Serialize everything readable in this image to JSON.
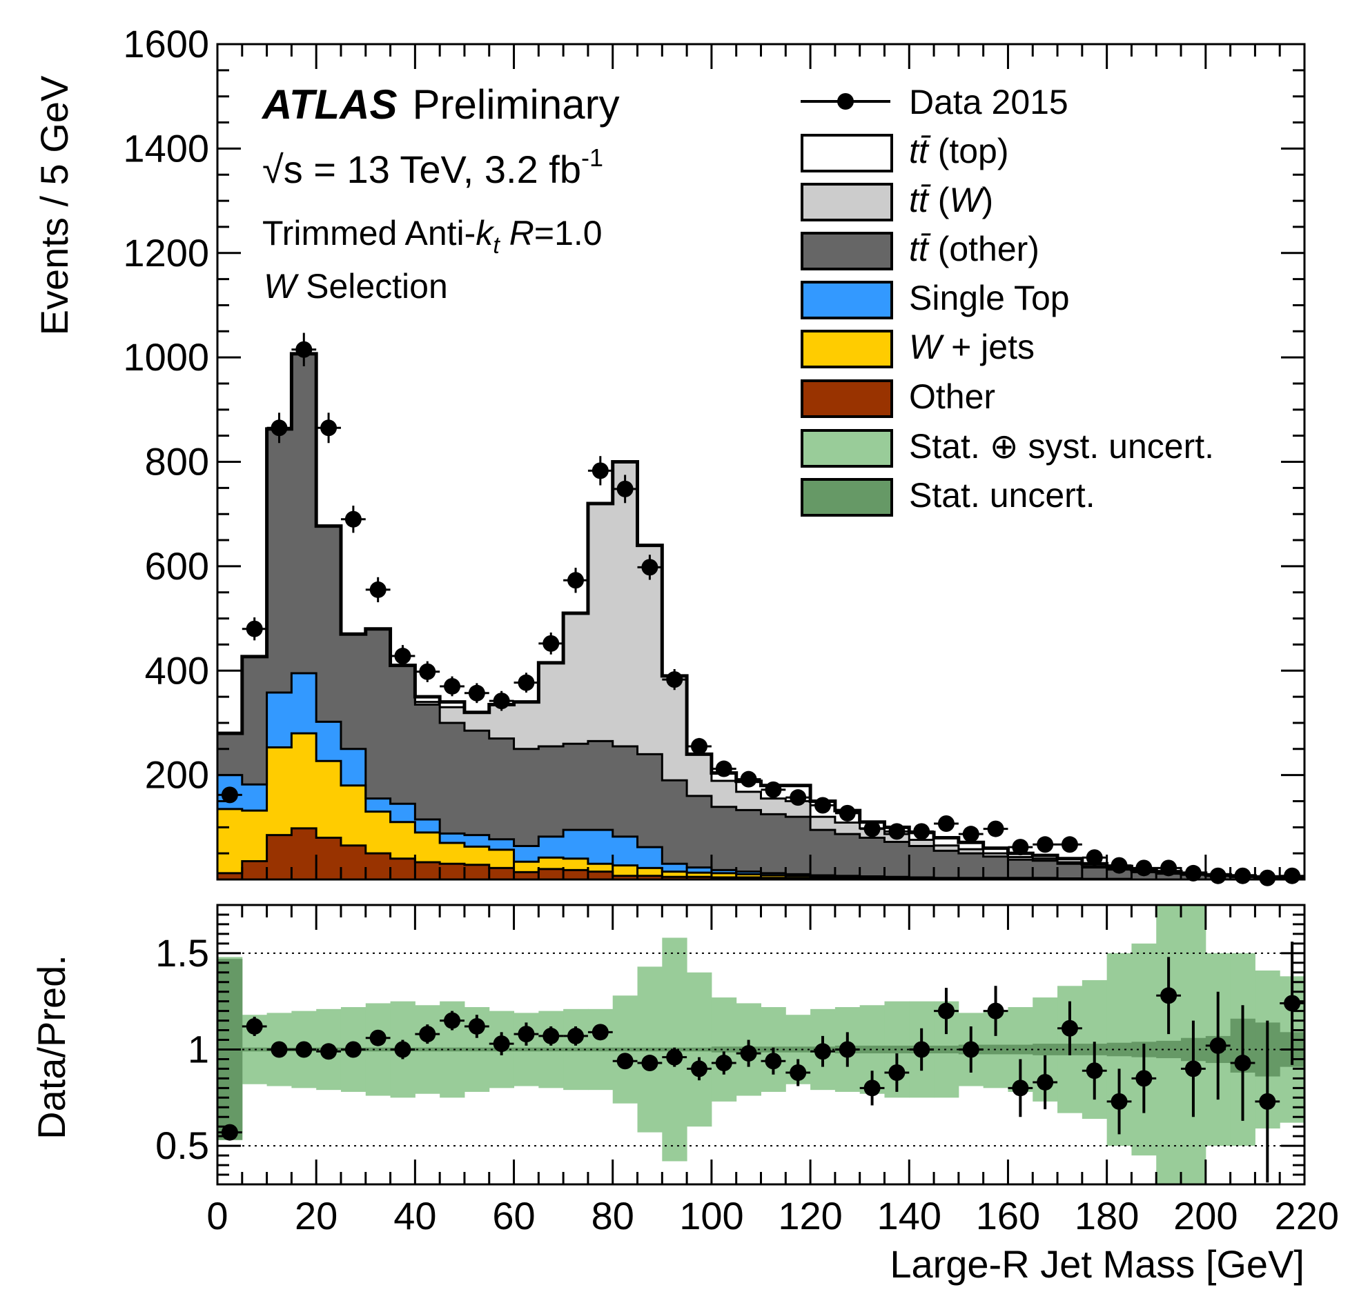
{
  "chart_data": [
    {
      "type": "area",
      "panel": "main",
      "ylabel": "Events / 5 GeV",
      "xlim": [
        0,
        220
      ],
      "ylim": [
        0,
        1600
      ],
      "yticks": [
        200,
        400,
        600,
        800,
        1000,
        1200,
        1400,
        1600
      ],
      "ytick_labels": [
        "200",
        "400",
        "600",
        "800",
        "1000",
        "1200",
        "1400",
        "1600"
      ],
      "annotations": {
        "atlas": "ATLAS",
        "preliminary": "Preliminary",
        "sqrt": "√",
        "energy": "s = 13 TeV, 3.2 fb",
        "energy_sup": "-1",
        "jet_a": "Trimmed Anti-",
        "jet_k": "k",
        "jet_t": "t",
        "jet_r": "R",
        "jet_b": "=1.0",
        "sel_w": "W",
        "sel_rest": " Selection"
      },
      "legend_position": "top-right",
      "legend": {
        "data": "Data 2015",
        "ttbar": "tt̄",
        "ttbar_top": " (top)",
        "ttbar_w_open": " (",
        "ttbar_w_w": "W",
        "ttbar_w_close": ")",
        "ttbar_other": " (other)",
        "single_top": "Single Top",
        "wjets_w": "W",
        "wjets_rest": " + jets",
        "other": "Other",
        "statsyst": "Stat. ⊕ syst. uncert.",
        "stat": "Stat. uncert."
      },
      "bin_width": 5,
      "bin_centers": [
        2.5,
        7.5,
        12.5,
        17.5,
        22.5,
        27.5,
        32.5,
        37.5,
        42.5,
        47.5,
        52.5,
        57.5,
        62.5,
        67.5,
        72.5,
        77.5,
        82.5,
        87.5,
        92.5,
        97.5,
        102.5,
        107.5,
        112.5,
        117.5,
        122.5,
        127.5,
        132.5,
        137.5,
        142.5,
        147.5,
        152.5,
        157.5,
        162.5,
        167.5,
        172.5,
        177.5,
        182.5,
        187.5,
        192.5,
        197.5,
        202.5,
        207.5,
        212.5,
        217.5
      ],
      "series": [
        {
          "name": "Other",
          "color": "#993300",
          "values": [
            12,
            35,
            85,
            98,
            80,
            65,
            50,
            40,
            33,
            30,
            28,
            22,
            14,
            20,
            18,
            15,
            7,
            7,
            5,
            5,
            4,
            4,
            3,
            3,
            2,
            2,
            2,
            1,
            1,
            1,
            1,
            1,
            1,
            1,
            1,
            0,
            0,
            0,
            0,
            0,
            0,
            0,
            0,
            0
          ]
        },
        {
          "name": "W + jets",
          "color": "#ffcc00",
          "values": [
            123,
            97,
            168,
            182,
            147,
            115,
            80,
            70,
            57,
            40,
            35,
            35,
            20,
            22,
            22,
            15,
            20,
            15,
            10,
            8,
            8,
            6,
            5,
            4,
            3,
            3,
            2,
            2,
            2,
            1,
            1,
            1,
            1,
            1,
            1,
            1,
            1,
            0,
            0,
            0,
            0,
            0,
            0,
            0
          ]
        },
        {
          "name": "Single Top",
          "color": "#3399ff",
          "values": [
            65,
            50,
            105,
            115,
            75,
            70,
            25,
            35,
            25,
            18,
            22,
            20,
            30,
            40,
            55,
            65,
            55,
            40,
            15,
            10,
            6,
            5,
            4,
            3,
            3,
            2,
            2,
            2,
            1,
            1,
            1,
            1,
            1,
            1,
            0,
            0,
            0,
            0,
            0,
            0,
            0,
            0,
            0,
            0
          ]
        },
        {
          "name": "tt̄ (other)",
          "color": "#666666",
          "values": [
            80,
            245,
            505,
            612,
            375,
            220,
            325,
            265,
            220,
            212,
            200,
            193,
            186,
            173,
            165,
            170,
            173,
            178,
            160,
            137,
            121,
            118,
            113,
            110,
            87,
            80,
            74,
            67,
            60,
            52,
            47,
            41,
            35,
            33,
            28,
            22,
            18,
            14,
            11,
            9,
            7,
            5,
            4,
            3
          ]
        },
        {
          "name": "tt̄ (W)",
          "color": "#cccccc",
          "values": [
            0,
            0,
            0,
            0,
            0,
            0,
            0,
            0,
            5,
            30,
            35,
            65,
            90,
            160,
            250,
            455,
            545,
            400,
            200,
            80,
            50,
            35,
            30,
            30,
            25,
            22,
            18,
            15,
            12,
            10,
            8,
            6,
            5,
            4,
            3,
            2,
            2,
            1,
            1,
            1,
            0,
            0,
            0,
            0
          ]
        },
        {
          "name": "tt̄ (top)",
          "color": "#ffffff",
          "values": [
            0,
            0,
            0,
            0,
            0,
            0,
            0,
            0,
            10,
            10,
            0,
            0,
            0,
            0,
            0,
            0,
            0,
            0,
            0,
            0,
            15,
            20,
            25,
            30,
            30,
            23,
            12,
            13,
            14,
            15,
            13,
            10,
            7,
            6,
            7,
            5,
            4,
            4,
            3,
            2,
            2,
            2,
            1,
            1
          ]
        }
      ],
      "data": {
        "name": "Data 2015",
        "values": [
          162,
          480,
          865,
          1015,
          865,
          690,
          555,
          428,
          398,
          370,
          357,
          342,
          377,
          452,
          573,
          783,
          748,
          598,
          383,
          255,
          212,
          192,
          172,
          157,
          142,
          127,
          97,
          92,
          92,
          107,
          87,
          97,
          62,
          67,
          67,
          42,
          27,
          22,
          22,
          12,
          7,
          7,
          3,
          7
        ],
        "errors": [
          13,
          22,
          29,
          32,
          29,
          26,
          24,
          21,
          20,
          19,
          19,
          19,
          19,
          21,
          24,
          28,
          27,
          24,
          20,
          16,
          15,
          14,
          13,
          13,
          12,
          11,
          10,
          10,
          10,
          10,
          9,
          10,
          8,
          8,
          8,
          7,
          5,
          5,
          5,
          4,
          3,
          3,
          2,
          3
        ]
      }
    },
    {
      "type": "scatter",
      "panel": "ratio",
      "xlabel": "Large-R Jet Mass [GeV]",
      "ylabel": "Data/Pred.",
      "xlim": [
        0,
        220
      ],
      "ylim": [
        0.3,
        1.75
      ],
      "yticks": [
        0.5,
        1,
        1.5
      ],
      "ytick_labels": [
        "0.5",
        "1",
        "1.5"
      ],
      "xticks": [
        0,
        20,
        40,
        60,
        80,
        100,
        120,
        140,
        160,
        180,
        200,
        220
      ],
      "xtick_labels": [
        "0",
        "20",
        "40",
        "60",
        "80",
        "100",
        "120",
        "140",
        "160",
        "180",
        "200",
        "220"
      ],
      "reference_lines": [
        0.5,
        1,
        1.5
      ],
      "bin_centers": [
        2.5,
        7.5,
        12.5,
        17.5,
        22.5,
        27.5,
        32.5,
        37.5,
        42.5,
        47.5,
        52.5,
        57.5,
        62.5,
        67.5,
        72.5,
        77.5,
        82.5,
        87.5,
        92.5,
        97.5,
        102.5,
        107.5,
        112.5,
        117.5,
        122.5,
        127.5,
        132.5,
        137.5,
        142.5,
        147.5,
        152.5,
        157.5,
        162.5,
        167.5,
        172.5,
        177.5,
        182.5,
        187.5,
        192.5,
        197.5,
        202.5,
        207.5,
        212.5,
        217.5
      ],
      "ratio": [
        0.57,
        1.12,
        1.0,
        1.0,
        0.99,
        1.0,
        1.06,
        1.0,
        1.08,
        1.15,
        1.12,
        1.03,
        1.08,
        1.07,
        1.07,
        1.09,
        0.94,
        0.93,
        0.96,
        0.9,
        0.93,
        0.98,
        0.94,
        0.88,
        0.99,
        1.0,
        0.8,
        0.88,
        1.0,
        1.2,
        1.0,
        1.2,
        0.8,
        0.83,
        1.11,
        0.89,
        0.73,
        0.85,
        1.28,
        0.9,
        1.02,
        0.93,
        0.73,
        1.24
      ],
      "ratio_errors": [
        0.04,
        0.05,
        0.03,
        0.03,
        0.03,
        0.04,
        0.04,
        0.05,
        0.05,
        0.05,
        0.06,
        0.06,
        0.06,
        0.05,
        0.05,
        0.04,
        0.04,
        0.04,
        0.05,
        0.06,
        0.06,
        0.07,
        0.07,
        0.07,
        0.08,
        0.09,
        0.09,
        0.1,
        0.11,
        0.12,
        0.12,
        0.13,
        0.15,
        0.14,
        0.14,
        0.15,
        0.17,
        0.18,
        0.2,
        0.25,
        0.28,
        0.3,
        0.42,
        0.32
      ],
      "statsyst_band": [
        [
          0.57,
          1.48
        ],
        [
          0.82,
          1.18
        ],
        [
          0.81,
          1.19
        ],
        [
          0.8,
          1.2
        ],
        [
          0.79,
          1.21
        ],
        [
          0.78,
          1.22
        ],
        [
          0.76,
          1.24
        ],
        [
          0.75,
          1.25
        ],
        [
          0.77,
          1.23
        ],
        [
          0.75,
          1.25
        ],
        [
          0.78,
          1.22
        ],
        [
          0.8,
          1.2
        ],
        [
          0.81,
          1.19
        ],
        [
          0.8,
          1.2
        ],
        [
          0.79,
          1.21
        ],
        [
          0.79,
          1.21
        ],
        [
          0.72,
          1.28
        ],
        [
          0.57,
          1.43
        ],
        [
          0.42,
          1.58
        ],
        [
          0.6,
          1.4
        ],
        [
          0.73,
          1.27
        ],
        [
          0.76,
          1.24
        ],
        [
          0.78,
          1.22
        ],
        [
          0.82,
          1.18
        ],
        [
          0.79,
          1.21
        ],
        [
          0.78,
          1.22
        ],
        [
          0.77,
          1.23
        ],
        [
          0.75,
          1.25
        ],
        [
          0.75,
          1.25
        ],
        [
          0.75,
          1.25
        ],
        [
          0.81,
          1.19
        ],
        [
          0.8,
          1.2
        ],
        [
          0.78,
          1.22
        ],
        [
          0.73,
          1.27
        ],
        [
          0.67,
          1.33
        ],
        [
          0.64,
          1.36
        ],
        [
          0.5,
          1.5
        ],
        [
          0.45,
          1.55
        ],
        [
          0.23,
          1.77
        ],
        [
          0.23,
          1.77
        ],
        [
          0.5,
          1.5
        ],
        [
          0.5,
          1.5
        ],
        [
          0.59,
          1.41
        ],
        [
          0.62,
          1.38
        ]
      ],
      "stat_band": [
        [
          0.53,
          1.47
        ],
        [
          0.99,
          1.01
        ],
        [
          0.99,
          1.01
        ],
        [
          0.99,
          1.01
        ],
        [
          0.99,
          1.01
        ],
        [
          0.99,
          1.01
        ],
        [
          0.99,
          1.01
        ],
        [
          0.99,
          1.01
        ],
        [
          0.99,
          1.01
        ],
        [
          0.99,
          1.01
        ],
        [
          0.99,
          1.01
        ],
        [
          0.99,
          1.01
        ],
        [
          0.99,
          1.01
        ],
        [
          0.99,
          1.01
        ],
        [
          0.99,
          1.01
        ],
        [
          0.99,
          1.01
        ],
        [
          0.99,
          1.01
        ],
        [
          0.99,
          1.01
        ],
        [
          0.99,
          1.01
        ],
        [
          0.99,
          1.01
        ],
        [
          0.985,
          1.015
        ],
        [
          0.985,
          1.015
        ],
        [
          0.985,
          1.015
        ],
        [
          0.985,
          1.015
        ],
        [
          0.985,
          1.015
        ],
        [
          0.98,
          1.02
        ],
        [
          0.98,
          1.02
        ],
        [
          0.98,
          1.02
        ],
        [
          0.98,
          1.02
        ],
        [
          0.98,
          1.02
        ],
        [
          0.975,
          1.025
        ],
        [
          0.975,
          1.025
        ],
        [
          0.975,
          1.025
        ],
        [
          0.97,
          1.03
        ],
        [
          0.97,
          1.03
        ],
        [
          0.97,
          1.03
        ],
        [
          0.965,
          1.035
        ],
        [
          0.96,
          1.04
        ],
        [
          0.955,
          1.045
        ],
        [
          0.94,
          1.06
        ],
        [
          0.93,
          1.07
        ],
        [
          0.88,
          1.16
        ],
        [
          0.86,
          1.14
        ],
        [
          0.91,
          1.09
        ]
      ]
    }
  ],
  "colors": {
    "statsyst_band": "#99cc99",
    "stat_band": "#669966",
    "frame": "#000000"
  }
}
